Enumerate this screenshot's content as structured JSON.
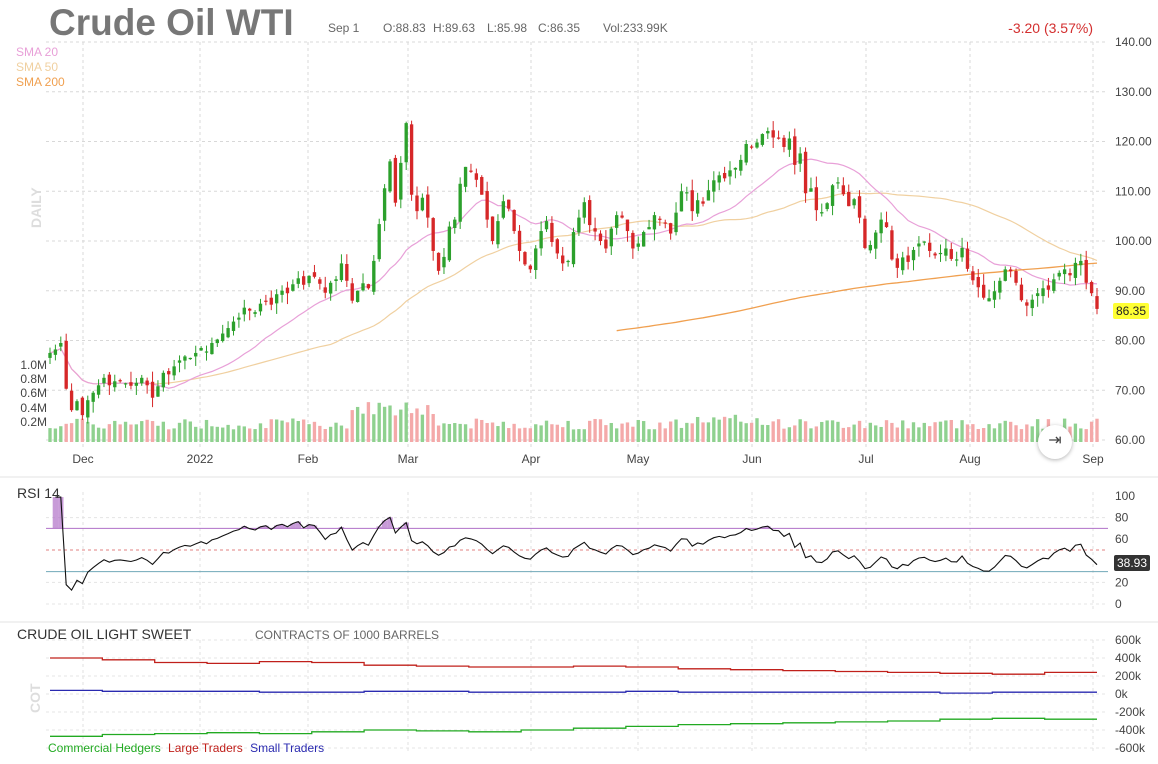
{
  "header": {
    "title": "Crude Oil WTI",
    "date": "Sep 1",
    "open": "O:88.83",
    "high": "H:89.63",
    "low": "L:85.98",
    "close": "C:86.35",
    "volume": "Vol:233.99K",
    "change": "-3.20 (3.57%)"
  },
  "legend": {
    "sma20": "SMA 20",
    "sma50": "SMA 50",
    "sma200": "SMA 200"
  },
  "side_labels": {
    "price": "DAILY",
    "cot": "COT"
  },
  "last_price": "86.35",
  "rsi": {
    "title": "RSI 14",
    "last": "38.93"
  },
  "cot": {
    "title": "CRUDE OIL LIGHT SWEET",
    "subtitle": "CONTRACTS OF 1000 BARRELS",
    "legend": [
      "Commercial Hedgers",
      "Large Traders",
      "Small Traders"
    ]
  },
  "colors": {
    "up": "#2ca02c",
    "down": "#d62728",
    "vol_up": "#8fd18f",
    "vol_down": "#f4a9a9",
    "sma20": "#e8a0d8",
    "sma50": "#f0d0a0",
    "sma200": "#f0a050",
    "rsi": "#111111",
    "rsi_over": "#b070c8",
    "rsi_under": "#70a8b8",
    "commercial": "#22aa22",
    "large": "#c0201b",
    "small": "#2a2ab0"
  },
  "chart_data": [
    {
      "type": "candlestick",
      "title": "Crude Oil WTI",
      "x_tick_labels": [
        "Dec",
        "2022",
        "Feb",
        "Mar",
        "Apr",
        "May",
        "Jun",
        "Jul",
        "Aug",
        "Sep"
      ],
      "y_tick_labels": [
        "140.00",
        "130.00",
        "120.00",
        "110.00",
        "100.00",
        "90.00",
        "80.00",
        "70.00",
        "60.00"
      ],
      "volume_tick_labels": [
        "1.0M",
        "0.8M",
        "0.6M",
        "0.4M",
        "0.2M"
      ],
      "ylim": [
        60,
        140
      ],
      "close_path": [
        77.5,
        78.2,
        79.5,
        70.3,
        66.0,
        67.8,
        65.0,
        68.0,
        69.5,
        71.0,
        72.5,
        71.0,
        71.8,
        72.0,
        71.4,
        70.9,
        71.5,
        72.5,
        71.0,
        68.5,
        70.8,
        73.5,
        73.2,
        74.8,
        76.0,
        76.8,
        76.5,
        77.5,
        78.5,
        77.8,
        79.5,
        80.2,
        81.4,
        82.5,
        83.8,
        84.6,
        86.6,
        86.0,
        85.7,
        87.4,
        88.0,
        87.2,
        89.3,
        90.0,
        89.5,
        91.3,
        92.5,
        91.2,
        93.0,
        92.8,
        91.4,
        89.6,
        91.6,
        92.3,
        95.5,
        92.0,
        88.0,
        90.0,
        91.5,
        90.5,
        96.0,
        103.4,
        110.6,
        116.0,
        107.7,
        115.7,
        123.7,
        109.3,
        106.0,
        108.7,
        104.7,
        98.0,
        94.0,
        96.8,
        102.9,
        104.3,
        111.5,
        114.9,
        113.9,
        112.3,
        109.3,
        104.3,
        100.0,
        104.0,
        108.0,
        106.5,
        102.0,
        98.0,
        95.3,
        94.3,
        98.5,
        102.0,
        104.0,
        99.8,
        97.5,
        95.5,
        96.0,
        101.8,
        104.7,
        107.8,
        103.2,
        101.9,
        100.0,
        98.5,
        102.5,
        105.2,
        104.7,
        102.0,
        98.5,
        99.5,
        101.8,
        102.8,
        105.2,
        104.3,
        103.6,
        101.5,
        105.7,
        110.0,
        109.8,
        106.0,
        108.2,
        107.5,
        110.2,
        112.2,
        113.2,
        112.6,
        114.2,
        114.7,
        116.3,
        119.5,
        118.8,
        119.8,
        121.5,
        122.1,
        120.8,
        120.7,
        118.9,
        120.6,
        115.3,
        117.6,
        109.6,
        110.6,
        106.2,
        105.8,
        107.6,
        111.2,
        111.8,
        109.4,
        107.0,
        108.4,
        104.7,
        98.6,
        99.2,
        101.7,
        104.3,
        102.8,
        96.3,
        94.6,
        96.7,
        95.8,
        98.2,
        99.5,
        99.9,
        98.0,
        97.1,
        97.6,
        98.5,
        96.4,
        96.3,
        98.6,
        94.4,
        92.1,
        90.7,
        88.6,
        88.5,
        89.9,
        92.0,
        94.3,
        93.9,
        91.6,
        88.1,
        87.0,
        88.2,
        89.5,
        90.5,
        90.2,
        92.3,
        93.6,
        94.3,
        93.1,
        95.6,
        96.0,
        91.6,
        89.5,
        86.35
      ],
      "last_close": 86.35
    },
    {
      "type": "line",
      "title": "RSI 14",
      "y_tick_labels": [
        "100",
        "80",
        "60",
        "40",
        "20",
        "0"
      ],
      "ylim": [
        0,
        100
      ],
      "overbought": 70,
      "oversold": 30,
      "last": 38.93
    },
    {
      "type": "line",
      "title": "CRUDE OIL LIGHT SWEET",
      "subtitle": "CONTRACTS OF 1000 BARRELS",
      "y_tick_labels": [
        "600k",
        "400k",
        "200k",
        "0k",
        "-200k",
        "-400k",
        "-600k"
      ],
      "ylim": [
        -600000,
        600000
      ],
      "series": [
        {
          "name": "Commercial Hedgers",
          "values": [
            -470000,
            -450000,
            -440000,
            -430000,
            -440000,
            -420000,
            -400000,
            -410000,
            -420000,
            -400000,
            -380000,
            -360000,
            -340000,
            -330000,
            -320000,
            -310000,
            -300000,
            -280000,
            -270000,
            -280000
          ]
        },
        {
          "name": "Large Traders",
          "values": [
            400000,
            380000,
            350000,
            340000,
            360000,
            350000,
            320000,
            310000,
            300000,
            300000,
            310000,
            300000,
            280000,
            270000,
            260000,
            250000,
            240000,
            230000,
            220000,
            240000
          ]
        },
        {
          "name": "Small Traders",
          "values": [
            40000,
            30000,
            30000,
            30000,
            20000,
            20000,
            30000,
            30000,
            20000,
            20000,
            20000,
            30000,
            20000,
            20000,
            20000,
            20000,
            20000,
            10000,
            20000,
            20000
          ]
        }
      ]
    }
  ]
}
